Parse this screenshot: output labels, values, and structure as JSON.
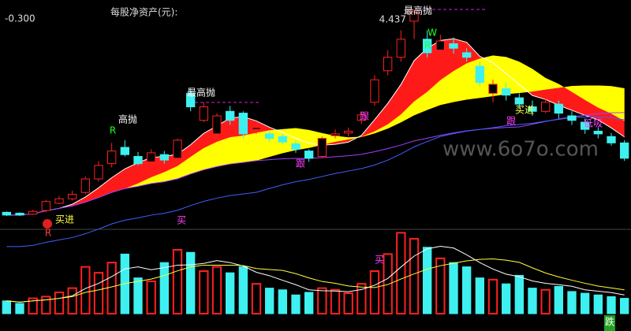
{
  "chart_data": {
    "type": "candlestick",
    "info_label": "每股净资产(元):",
    "corner_value": {
      "value": -0.3,
      "label": "-0.300"
    },
    "ylim": [
      2.0,
      4.5
    ],
    "volume_ylim": [
      0,
      100
    ],
    "up_color": "#ff2020",
    "down_color": "#3ef0f0",
    "candles": [
      [
        2.18,
        2.15,
        2.19,
        2.14
      ],
      [
        2.17,
        2.15,
        2.18,
        2.14
      ],
      [
        2.16,
        2.19,
        2.21,
        2.15
      ],
      [
        2.2,
        2.3,
        2.32,
        2.18
      ],
      [
        2.28,
        2.33,
        2.36,
        2.27
      ],
      [
        2.33,
        2.38,
        2.42,
        2.31
      ],
      [
        2.4,
        2.55,
        2.58,
        2.38
      ],
      [
        2.55,
        2.7,
        2.75,
        2.52
      ],
      [
        2.72,
        2.86,
        2.95,
        2.68
      ],
      [
        2.9,
        2.82,
        2.98,
        2.8
      ],
      [
        2.8,
        2.72,
        2.85,
        2.7
      ],
      [
        2.74,
        2.84,
        2.88,
        2.72
      ],
      [
        2.82,
        2.76,
        2.86,
        2.72
      ],
      [
        2.78,
        2.98,
        3.0,
        2.76
      ],
      [
        3.5,
        3.35,
        3.56,
        3.3
      ],
      [
        3.2,
        3.35,
        3.4,
        3.18
      ],
      [
        3.05,
        3.25,
        3.28,
        3.02
      ],
      [
        3.3,
        3.2,
        3.36,
        3.15
      ],
      [
        3.28,
        3.05,
        3.3,
        3.0
      ],
      [
        3.1,
        3.12,
        3.16,
        3.05
      ],
      [
        3.05,
        3.0,
        3.08,
        2.96
      ],
      [
        3.02,
        2.96,
        3.05,
        2.93
      ],
      [
        2.94,
        2.88,
        2.97,
        2.84
      ],
      [
        2.86,
        2.78,
        2.88,
        2.74
      ],
      [
        2.8,
        3.0,
        3.02,
        2.78
      ],
      [
        3.03,
        3.05,
        3.1,
        3.0
      ],
      [
        3.06,
        3.08,
        3.12,
        3.02
      ],
      [
        3.2,
        3.26,
        3.3,
        3.16
      ],
      [
        3.4,
        3.65,
        3.7,
        3.36
      ],
      [
        3.75,
        3.9,
        3.98,
        3.7
      ],
      [
        3.9,
        4.1,
        4.2,
        3.85
      ],
      [
        4.3,
        4.4,
        4.437,
        4.1
      ],
      [
        4.1,
        3.95,
        4.2,
        3.9
      ],
      [
        3.98,
        4.08,
        4.15,
        3.95
      ],
      [
        4.05,
        4.0,
        4.12,
        3.94
      ],
      [
        3.95,
        3.9,
        4.0,
        3.85
      ],
      [
        3.8,
        3.62,
        3.85,
        3.58
      ],
      [
        3.5,
        3.6,
        3.65,
        3.4
      ],
      [
        3.55,
        3.48,
        3.62,
        3.42
      ],
      [
        3.45,
        3.38,
        3.5,
        3.33
      ],
      [
        3.35,
        3.3,
        3.42,
        3.25
      ],
      [
        3.3,
        3.4,
        3.45,
        3.28
      ],
      [
        3.38,
        3.28,
        3.42,
        3.22
      ],
      [
        3.25,
        3.2,
        3.3,
        3.15
      ],
      [
        3.18,
        3.1,
        3.22,
        3.05
      ],
      [
        3.08,
        3.05,
        3.12,
        3.0
      ],
      [
        3.02,
        2.95,
        3.06,
        2.92
      ],
      [
        2.95,
        2.78,
        2.98,
        2.75
      ]
    ],
    "volume": [
      15,
      12,
      18,
      20,
      25,
      30,
      55,
      48,
      60,
      70,
      42,
      38,
      60,
      75,
      72,
      50,
      55,
      48,
      55,
      35,
      30,
      28,
      22,
      25,
      30,
      28,
      24,
      35,
      50,
      70,
      95,
      88,
      78,
      65,
      60,
      55,
      42,
      40,
      35,
      45,
      30,
      28,
      32,
      26,
      24,
      22,
      20,
      18
    ],
    "annotations": [
      "最高抛",
      "W",
      "R",
      "高抛",
      "R",
      "最高抛",
      "买进",
      "买进",
      "跟",
      "跟",
      "跟",
      "低吸",
      "R",
      "买",
      "买",
      "跌"
    ],
    "watermark": "www.6o7o.com"
  }
}
